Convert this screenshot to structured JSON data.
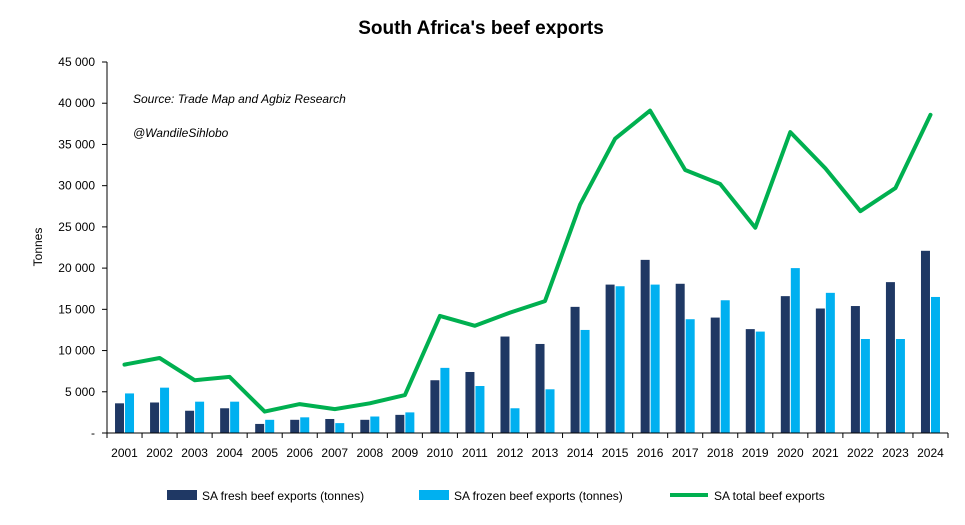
{
  "chart_data": {
    "type": "bar",
    "title": "South Africa's beef exports",
    "xlabel": "",
    "ylabel": "Tonnes",
    "ylim": [
      0,
      45000
    ],
    "yticks": [
      0,
      5000,
      10000,
      15000,
      20000,
      25000,
      30000,
      35000,
      40000,
      45000
    ],
    "ytick_labels": [
      "-",
      "5 000",
      "10 000",
      "15 000",
      "20 000",
      "25 000",
      "30 000",
      "35 000",
      "40 000",
      "45 000"
    ],
    "grid": false,
    "legend_position": "bottom",
    "annotations": [
      "Source: Trade Map and Agbiz Research",
      "@WandileSihlobo"
    ],
    "categories": [
      "2001",
      "2002",
      "2003",
      "2004",
      "2005",
      "2006",
      "2007",
      "2008",
      "2009",
      "2010",
      "2011",
      "2012",
      "2013",
      "2014",
      "2015",
      "2016",
      "2017",
      "2018",
      "2019",
      "2020",
      "2021",
      "2022",
      "2023",
      "2024"
    ],
    "series": [
      {
        "name": "SA fresh beef exports (tonnes)",
        "kind": "bar",
        "color": "#1f3864",
        "values": [
          3600,
          3700,
          2700,
          3000,
          1100,
          1600,
          1700,
          1600,
          2200,
          6400,
          7400,
          11700,
          10800,
          15300,
          18000,
          21000,
          18100,
          14000,
          12600,
          16600,
          15100,
          15400,
          18300,
          22100
        ]
      },
      {
        "name": "SA frozen beef exports (tonnes)",
        "kind": "bar",
        "color": "#00b0f0",
        "values": [
          4800,
          5500,
          3800,
          3800,
          1600,
          1900,
          1200,
          2000,
          2500,
          7900,
          5700,
          3000,
          5300,
          12500,
          17800,
          18000,
          13800,
          16100,
          12300,
          20000,
          17000,
          11400,
          11400,
          16500
        ]
      },
      {
        "name": "SA total beef exports",
        "kind": "line",
        "color": "#00b050",
        "values": [
          8300,
          9100,
          6400,
          6800,
          2600,
          3500,
          2900,
          3600,
          4600,
          14200,
          13000,
          14600,
          16000,
          27700,
          35700,
          39100,
          31900,
          30200,
          24900,
          36500,
          32100,
          26900,
          29700,
          38600
        ]
      }
    ]
  }
}
